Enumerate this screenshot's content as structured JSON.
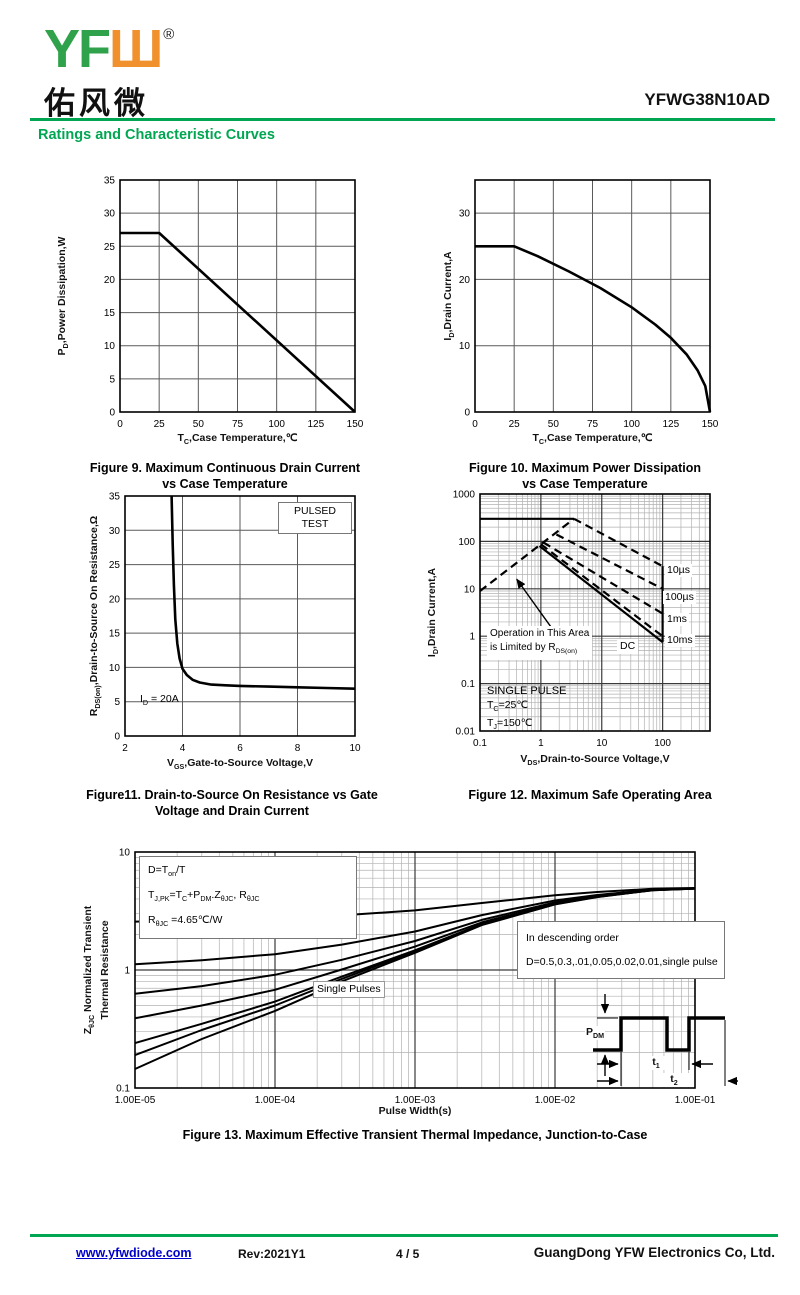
{
  "header": {
    "logo_green": "YF",
    "logo_orange": "Ш",
    "registered": "®",
    "logo_chinese": "佑风微",
    "part_number": "YFWG38N10AD",
    "section_title": "Ratings and Characteristic Curves"
  },
  "footer": {
    "website": "www.yfwdiode.com",
    "revision": "Rev:2021Y1",
    "page": "4 / 5",
    "company": "GuangDong YFW Electronics Co, Ltd."
  },
  "colors": {
    "brand_green": "#00A651",
    "logo_green": "#2FA24B",
    "logo_orange": "#F0912D",
    "link_blue": "#0000CC"
  },
  "chart_data": [
    {
      "id": "figure9",
      "type": "line",
      "title": "Figure 9. Maximum Continuous Drain Current",
      "title2": "vs Case Temperature",
      "xlabel": "T~C~,Case Temperature,℃",
      "ylabel": "P~D~,Power Dissipation,W",
      "xscale": "linear",
      "yscale": "linear",
      "xlim": [
        0,
        150
      ],
      "ylim": [
        0,
        35
      ],
      "xticks": [
        0,
        25,
        50,
        75,
        100,
        125,
        150
      ],
      "yticks": [
        0,
        5,
        10,
        15,
        20,
        25,
        30,
        35
      ],
      "grid": true,
      "series": [
        {
          "name": "max-power-dissipation",
          "style": "solid",
          "points": [
            [
              0,
              27
            ],
            [
              25,
              27
            ],
            [
              150,
              0
            ]
          ]
        }
      ]
    },
    {
      "id": "figure10",
      "type": "line",
      "title": "Figure 10. Maximum Power Dissipation",
      "title2": "vs Case Temperature",
      "xlabel": "T~C~,Case Temperature,℃",
      "ylabel": "I~D~,Drain Current,A",
      "xscale": "linear",
      "yscale": "linear",
      "xlim": [
        0,
        150
      ],
      "ylim": [
        0,
        35
      ],
      "xticks": [
        0,
        25,
        50,
        75,
        100,
        125,
        150
      ],
      "yticks": [
        0,
        10,
        20,
        30
      ],
      "grid": true,
      "series": [
        {
          "name": "max-drain-current",
          "style": "solid",
          "points": [
            [
              0,
              25
            ],
            [
              25,
              25
            ],
            [
              40,
              23.5
            ],
            [
              60,
              21.2
            ],
            [
              80,
              18.7
            ],
            [
              100,
              15.8
            ],
            [
              115,
              13.2
            ],
            [
              125,
              11.2
            ],
            [
              135,
              8.7
            ],
            [
              142,
              6.3
            ],
            [
              147,
              3.9
            ],
            [
              150,
              0
            ]
          ]
        }
      ]
    },
    {
      "id": "figure11",
      "type": "line",
      "title": "Figure11. Drain-to-Source On Resistance vs Gate",
      "title2": "Voltage and Drain Current",
      "xlabel": "V~GS~,Gate-to-Source Voltage,V",
      "ylabel": "R~DS(on)~,Drain-to-Source On Resistance,Ω",
      "xscale": "linear",
      "yscale": "linear",
      "xlim": [
        2,
        10
      ],
      "ylim": [
        0,
        35
      ],
      "xticks": [
        2,
        4,
        6,
        8,
        10
      ],
      "yticks": [
        0,
        5,
        10,
        15,
        20,
        25,
        30,
        35
      ],
      "grid": true,
      "series": [
        {
          "name": "rdson-vs-vgs",
          "style": "solid",
          "points": [
            [
              3.62,
              35
            ],
            [
              3.66,
              28
            ],
            [
              3.7,
              22
            ],
            [
              3.75,
              17
            ],
            [
              3.82,
              13.5
            ],
            [
              3.9,
              11.3
            ],
            [
              4.0,
              9.8
            ],
            [
              4.15,
              8.9
            ],
            [
              4.35,
              8.2
            ],
            [
              4.6,
              7.8
            ],
            [
              5,
              7.5
            ],
            [
              5.5,
              7.4
            ],
            [
              6,
              7.3
            ],
            [
              7,
              7.2
            ],
            [
              8,
              7.1
            ],
            [
              9,
              7.0
            ],
            [
              10,
              6.9
            ]
          ]
        }
      ],
      "annotations": {
        "pulsed_test": [
          "PULSED",
          "TEST"
        ],
        "condition": "I~D~ = 20A"
      }
    },
    {
      "id": "figure12",
      "type": "line",
      "title": "Figure 12. Maximum Safe Operating Area",
      "xlabel": "V~DS~,Drain-to-Source Voltage,V",
      "ylabel": "I~D~,Drain Current,A",
      "xscale": "log",
      "yscale": "log",
      "xlim": [
        0.1,
        600
      ],
      "ylim": [
        0.01,
        1000
      ],
      "xticks": [
        0.1,
        1,
        10,
        100
      ],
      "xtick_labels": [
        "0.1",
        "1",
        "10",
        "100"
      ],
      "yticks": [
        0.01,
        0.1,
        1,
        10,
        100,
        1000
      ],
      "ytick_labels": [
        "0.01",
        "0.1",
        "1",
        "10",
        "100",
        "1000"
      ],
      "grid": true,
      "series": [
        {
          "name": "rdson-limit",
          "style": "dashed",
          "points": [
            [
              0.1,
              9
            ],
            [
              3.5,
              300
            ]
          ]
        },
        {
          "name": "peak-current-limit",
          "style": "solid",
          "points": [
            [
              0.1,
              300
            ],
            [
              3.5,
              300
            ]
          ]
        },
        {
          "name": "10µs",
          "style": "dashed",
          "points": [
            [
              3.5,
              300
            ],
            [
              100,
              30
            ]
          ]
        },
        {
          "name": "100µs",
          "style": "dashed",
          "points": [
            [
              1.8,
              140
            ],
            [
              100,
              10
            ]
          ]
        },
        {
          "name": "1ms",
          "style": "dashed",
          "points": [
            [
              1.1,
              95
            ],
            [
              100,
              3
            ]
          ]
        },
        {
          "name": "10ms",
          "style": "dashed",
          "points": [
            [
              1.0,
              87
            ],
            [
              100,
              1
            ]
          ]
        },
        {
          "name": "DC",
          "style": "solid",
          "points": [
            [
              0.95,
              80
            ],
            [
              100,
              0.75
            ]
          ]
        },
        {
          "name": "voltage-limit",
          "style": "solid",
          "points": [
            [
              100,
              30
            ],
            [
              100,
              0.75
            ]
          ]
        }
      ],
      "annotations": {
        "region": [
          "Operation in This Area",
          "is Limited by R~DS(on)~"
        ],
        "dc_label": "DC",
        "pulse_labels": [
          "10µs",
          "100µs",
          "1ms",
          "10ms"
        ],
        "conditions": [
          "SINGLE PULSE",
          "T~C~=25℃",
          "T~J~=150℃"
        ],
        "arrow": {
          "from": [
            1.7,
            1.2
          ],
          "to": [
            0.4,
            16
          ]
        }
      }
    },
    {
      "id": "figure13",
      "type": "line",
      "title": "Figure 13. Maximum Effective Transient Thermal Impedance, Junction-to-Case",
      "xlabel": "Pulse Width(s)",
      "ylabel": "Z~θJC~ Normalized Transient",
      "ylabel2": "Thermal Resistance",
      "xscale": "log",
      "yscale": "log",
      "xlim": [
        1e-05,
        0.1
      ],
      "ylim": [
        0.1,
        10
      ],
      "xticks": [
        1e-05,
        0.0001,
        0.001,
        0.01,
        0.1
      ],
      "xtick_labels": [
        "1.00E-05",
        "1.00E-04",
        "1.00E-03",
        "1.00E-02",
        "1.00E-01"
      ],
      "yticks": [
        0.1,
        1,
        10
      ],
      "ytick_labels": [
        "0.1",
        "1",
        "10"
      ],
      "grid": true,
      "x": [
        1e-05,
        3e-05,
        0.0001,
        0.0003,
        0.001,
        0.003,
        0.01,
        0.02,
        0.05,
        0.1
      ],
      "series": [
        {
          "name": "D=0.5",
          "values": [
            2.57,
            2.63,
            2.73,
            2.9,
            3.2,
            3.7,
            4.3,
            4.58,
            4.88,
            4.95
          ]
        },
        {
          "name": "D=0.3",
          "values": [
            1.12,
            1.21,
            1.36,
            1.64,
            2.12,
            2.92,
            3.88,
            4.32,
            4.8,
            4.92
          ]
        },
        {
          "name": "D=0.1",
          "values": [
            0.63,
            0.73,
            0.91,
            1.22,
            1.76,
            2.66,
            3.74,
            4.24,
            4.78,
            4.91
          ]
        },
        {
          "name": "D=0.05",
          "values": [
            0.39,
            0.5,
            0.68,
            1.01,
            1.58,
            2.53,
            3.67,
            4.19,
            4.76,
            4.91
          ]
        },
        {
          "name": "D=0.02",
          "values": [
            0.24,
            0.35,
            0.54,
            0.88,
            1.47,
            2.45,
            3.63,
            4.17,
            4.76,
            4.9
          ]
        },
        {
          "name": "D=0.01",
          "values": [
            0.19,
            0.31,
            0.5,
            0.84,
            1.44,
            2.42,
            3.61,
            4.16,
            4.75,
            4.9
          ]
        },
        {
          "name": "single pulse",
          "values": [
            0.145,
            0.26,
            0.45,
            0.8,
            1.4,
            2.4,
            3.6,
            4.15,
            4.75,
            4.9
          ]
        }
      ],
      "annotations": {
        "formula": [
          "D=T~on~/T",
          "T~J,PK~=T~C~+P~DM~.Z~θJC~, R~θJC~",
          "R~θJC~ =4.65℃/W"
        ],
        "order": [
          "In descending order",
          "D=0.5,0.3,.01,0.05,0.02,0.01,single pulse"
        ],
        "single_pulses": "Single Pulses",
        "waveform": {
          "pdm": "P~DM~",
          "t1": "t~1~",
          "t2": "t~2~"
        }
      }
    }
  ]
}
